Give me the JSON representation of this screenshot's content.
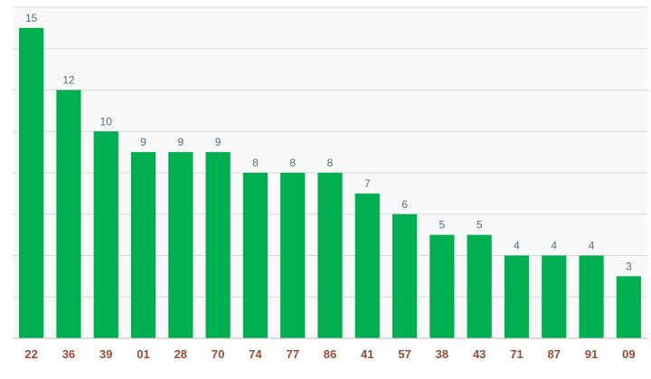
{
  "chart_data": {
    "type": "bar",
    "categories": [
      "22",
      "36",
      "39",
      "01",
      "28",
      "70",
      "74",
      "77",
      "86",
      "41",
      "57",
      "38",
      "43",
      "71",
      "87",
      "91",
      "09"
    ],
    "values": [
      15,
      12,
      10,
      9,
      9,
      9,
      8,
      8,
      8,
      7,
      6,
      5,
      5,
      4,
      4,
      4,
      3
    ],
    "title": "",
    "xlabel": "",
    "ylabel": "",
    "ylim": [
      0,
      16
    ],
    "grid": true,
    "legend": "none",
    "colors": {
      "bar": "#00b050",
      "grid": "#d9d9d9",
      "background": "#f9f9f9",
      "value_label": "#4f6f86",
      "category_label": "#9b4a32"
    }
  }
}
